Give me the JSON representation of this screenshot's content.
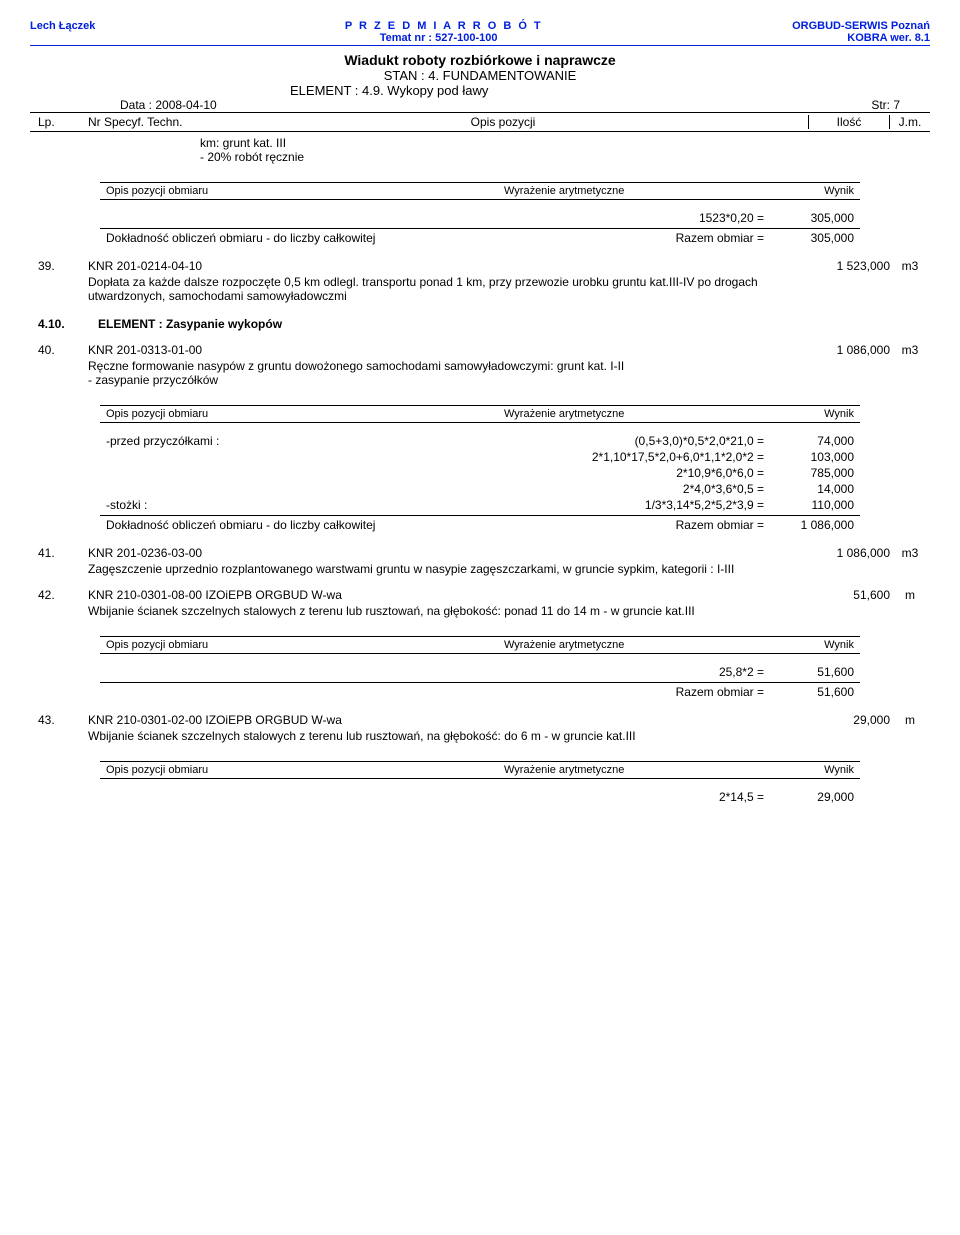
{
  "header": {
    "left": "Lech Łączek",
    "center1": "P R Z E D M I A R   R O B Ó T",
    "right1": "ORGBUD-SERWIS Poznań",
    "center2": "Temat nr : 527-100-100",
    "right2": "KOBRA wer. 8.1",
    "title": "Wiadukt roboty rozbiórkowe i naprawcze",
    "stan": "STAN : 4.  FUNDAMENTOWANIE",
    "element": "ELEMENT : 4.9.  Wykopy pod ławy",
    "date": "Data : 2008-04-10",
    "page": "Str: 7"
  },
  "cols": {
    "lp": "Lp.",
    "nrspec": "Nr Specyf. Techn.",
    "opis": "Opis pozycji",
    "ilosc": "Ilość",
    "jm": "J.m."
  },
  "intro_note": "km: grunt kat. III\n- 20% robót ręcznie",
  "obmiar_hdr": {
    "c1": "Opis pozycji obmiaru",
    "c2": "Wyrażenie arytmetyczne",
    "c3": "Wynik"
  },
  "box1": {
    "expr1": "1523*0,20 =",
    "val1": "305,000",
    "subtotal_label": "Dokładność obliczeń obmiaru - do liczby całkowitej",
    "subtotal_expr": "Razem obmiar =",
    "subtotal_val": "305,000"
  },
  "item39": {
    "no": "39.",
    "code": "KNR  201-0214-04-10",
    "qty": "1 523,000",
    "unit": "m3",
    "desc": "Dopłata za każde dalsze rozpoczęte 0,5 km odlegl. transportu ponad 1 km, przy przewozie urobku gruntu kat.III-IV po drogach utwardzonych, samochodami samowyładowczmi"
  },
  "sec410": {
    "no": "4.10.",
    "txt": "ELEMENT :  Zasypanie wykopów"
  },
  "item40": {
    "no": "40.",
    "code": "KNR  201-0313-01-00",
    "qty": "1 086,000",
    "unit": "m3",
    "desc": "Ręczne formowanie nasypów z gruntu dowożonego samochodami samowyładowczymi: grunt kat. I-II\n- zasypanie przyczółków"
  },
  "box40": {
    "lines": [
      {
        "label": "-przed przyczółkami :",
        "expr": "(0,5+3,0)*0,5*2,0*21,0 =",
        "val": "74,000"
      },
      {
        "label": "",
        "expr": "2*1,10*17,5*2,0+6,0*1,1*2,0*2 =",
        "val": "103,000"
      },
      {
        "label": "",
        "expr": "2*10,9*6,0*6,0 =",
        "val": "785,000"
      },
      {
        "label": "",
        "expr": "2*4,0*3,6*0,5 =",
        "val": "14,000"
      },
      {
        "label": "-stożki :",
        "expr": "1/3*3,14*5,2*5,2*3,9 =",
        "val": "110,000"
      }
    ],
    "subtotal_label": "Dokładność obliczeń obmiaru - do liczby całkowitej",
    "subtotal_expr": "Razem obmiar =",
    "subtotal_val": "1 086,000"
  },
  "item41": {
    "no": "41.",
    "code": "KNR  201-0236-03-00",
    "qty": "1 086,000",
    "unit": "m3",
    "desc": "Zagęszczenie uprzednio rozplantowanego warstwami gruntu w nasypie zagęszczarkami, w gruncie sypkim, kategorii : I-III"
  },
  "item42": {
    "no": "42.",
    "code": "KNR  210-0301-08-00  IZOiEPB ORGBUD W-wa",
    "qty": "51,600",
    "unit": "m",
    "desc": "Wbijanie ścianek szczelnych stalowych z terenu lub rusztowań, na głębokość: ponad 11 do 14 m - w gruncie kat.III"
  },
  "box42": {
    "expr1": "25,8*2 =",
    "val1": "51,600",
    "subtotal_expr": "Razem obmiar =",
    "subtotal_val": "51,600"
  },
  "item43": {
    "no": "43.",
    "code": "KNR  210-0301-02-00  IZOiEPB ORGBUD W-wa",
    "qty": "29,000",
    "unit": "m",
    "desc": "Wbijanie ścianek szczelnych stalowych z terenu lub rusztowań, na głębokość: do 6 m - w gruncie kat.III"
  },
  "box43": {
    "expr1": "2*14,5 =",
    "val1": "29,000"
  }
}
